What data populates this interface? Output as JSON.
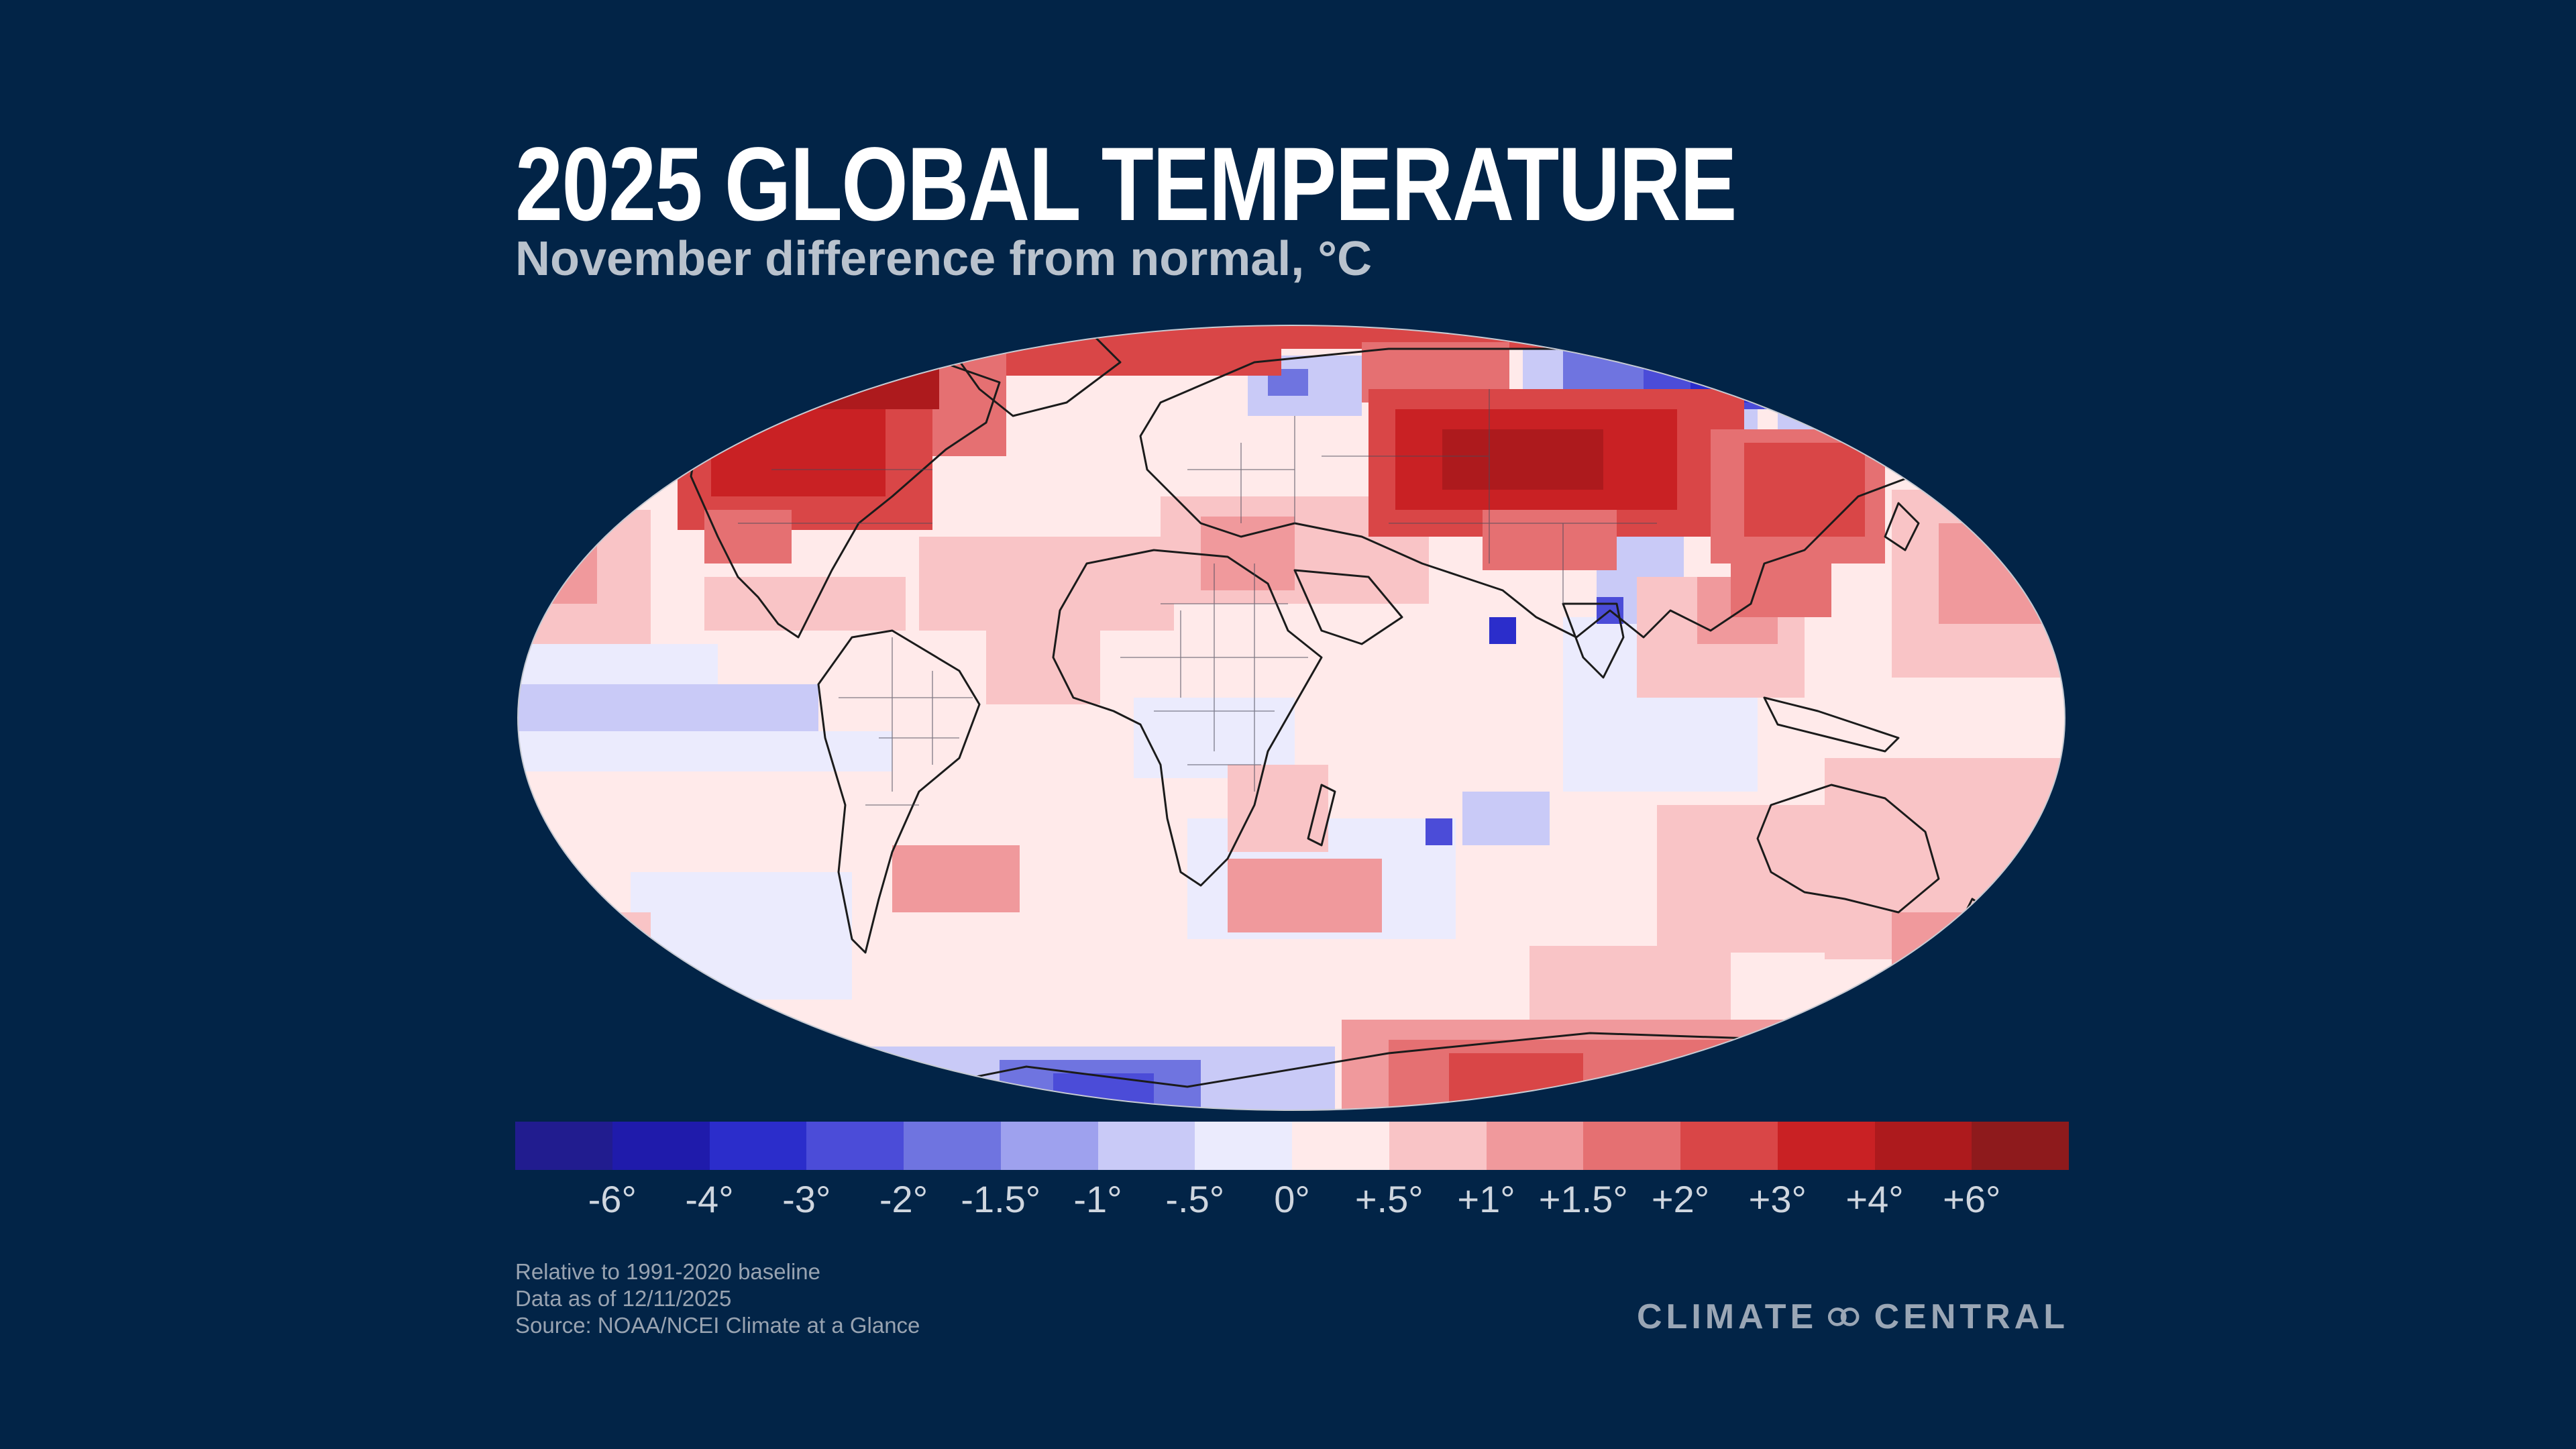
{
  "header": {
    "title": "2025 GLOBAL TEMPERATURE",
    "subtitle": "November difference from normal, °C"
  },
  "legend": {
    "colors": [
      "#211c8f",
      "#1f1bab",
      "#2b2dcb",
      "#4b4cd8",
      "#6f74e0",
      "#9ea1ee",
      "#c9caf7",
      "#ebebfd",
      "#ffeaea",
      "#f9c4c6",
      "#f0999c",
      "#e57072",
      "#d94647",
      "#c92124",
      "#ad1a1d",
      "#8e1a1c"
    ],
    "tick_labels": [
      "-6°",
      "-4°",
      "-3°",
      "-2°",
      "-1.5°",
      "-1°",
      "-.5°",
      "0°",
      "+.5°",
      "+1°",
      "+1.5°",
      "+2°",
      "+3°",
      "+4°",
      "+6°"
    ]
  },
  "footnotes": {
    "baseline": "Relative to 1991-2020 baseline",
    "data_date": "Data as of 12/11/2025",
    "source": "Source:  NOAA/NCEI Climate at a Glance"
  },
  "brand": {
    "left_word": "CLIMATE",
    "right_word": "CENTRAL",
    "mark_icon": "climate-central-rings-icon"
  }
}
